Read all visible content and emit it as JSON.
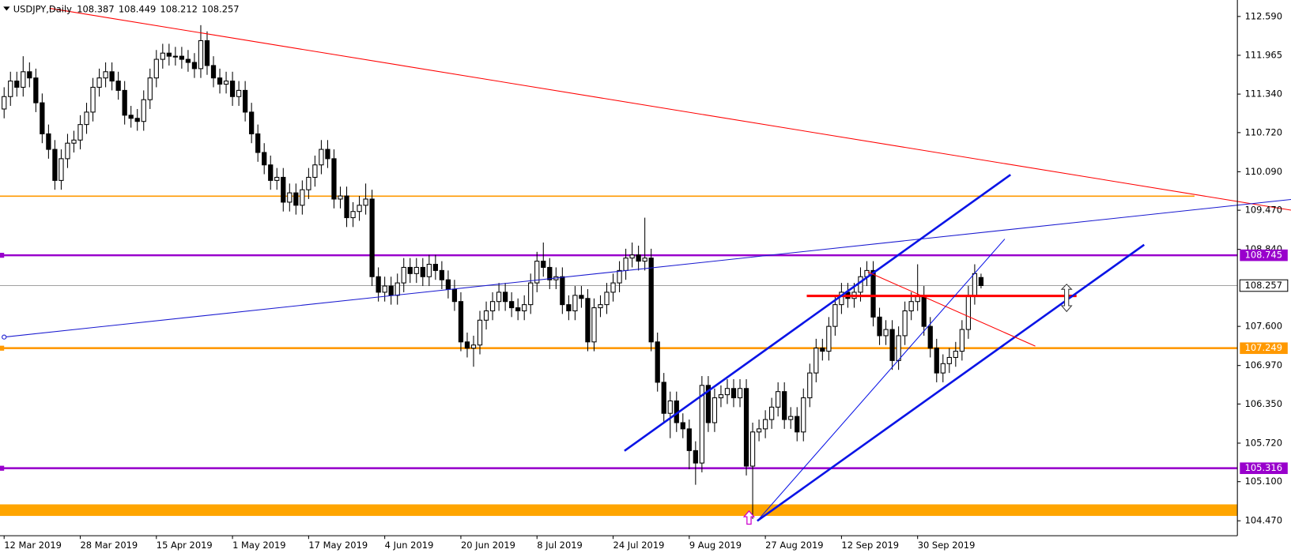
{
  "chart_data": {
    "type": "candlestick",
    "symbol": "USDJPY,Daily",
    "categories": [
      "12 Mar 2019",
      null,
      null,
      null,
      null,
      null,
      null,
      null,
      null,
      null,
      null,
      null,
      "28 Mar 2019",
      null,
      null,
      null,
      null,
      null,
      null,
      null,
      null,
      null,
      null,
      null,
      "15 Apr 2019",
      null,
      null,
      null,
      null,
      null,
      null,
      null,
      null,
      null,
      null,
      null,
      "1 May 2019",
      null,
      null,
      null,
      null,
      null,
      null,
      null,
      null,
      null,
      null,
      null,
      "17 May 2019",
      null,
      null,
      null,
      null,
      null,
      null,
      null,
      null,
      null,
      null,
      null,
      "4 Jun 2019",
      null,
      null,
      null,
      null,
      null,
      null,
      null,
      null,
      null,
      null,
      null,
      "20 Jun 2019",
      null,
      null,
      null,
      null,
      null,
      null,
      null,
      null,
      null,
      null,
      null,
      "8 Jul 2019",
      null,
      null,
      null,
      null,
      null,
      null,
      null,
      null,
      null,
      null,
      null,
      "24 Jul 2019",
      null,
      null,
      null,
      null,
      null,
      null,
      null,
      null,
      null,
      null,
      null,
      "9 Aug 2019",
      null,
      null,
      null,
      null,
      null,
      null,
      null,
      null,
      null,
      null,
      null,
      "27 Aug 2019",
      null,
      null,
      null,
      null,
      null,
      null,
      null,
      null,
      null,
      null,
      null,
      "12 Sep 2019",
      null,
      null,
      null,
      null,
      null,
      null,
      null,
      null,
      null,
      null,
      null,
      "30 Sep 2019",
      null,
      null,
      null,
      null,
      null,
      null,
      null,
      null,
      null,
      null
    ],
    "open": [
      111.1,
      111.3,
      111.55,
      111.45,
      111.7,
      111.6,
      111.2,
      110.7,
      110.45,
      109.95,
      110.3,
      110.55,
      110.6,
      110.85,
      111.05,
      111.45,
      111.6,
      111.7,
      111.55,
      111.4,
      111.0,
      110.95,
      110.9,
      111.25,
      111.6,
      111.9,
      112.0,
      111.95,
      111.95,
      111.9,
      111.85,
      111.75,
      112.2,
      111.8,
      111.6,
      111.5,
      111.55,
      111.3,
      111.4,
      111.05,
      110.7,
      110.4,
      110.2,
      109.95,
      110.0,
      109.6,
      109.75,
      109.55,
      109.8,
      110.0,
      110.2,
      110.45,
      110.3,
      109.65,
      109.7,
      109.35,
      109.45,
      109.55,
      109.65,
      108.4,
      108.15,
      108.25,
      108.1,
      108.3,
      108.55,
      108.45,
      108.55,
      108.4,
      108.6,
      108.5,
      108.35,
      108.2,
      108.0,
      107.35,
      107.25,
      107.3,
      107.7,
      107.85,
      108.0,
      108.15,
      108.0,
      107.9,
      107.85,
      107.95,
      108.3,
      108.65,
      108.55,
      108.35,
      108.4,
      107.95,
      107.85,
      108.1,
      108.05,
      107.35,
      107.9,
      107.95,
      108.15,
      108.3,
      108.5,
      108.7,
      108.75,
      108.65,
      108.7,
      107.35,
      106.7,
      106.2,
      106.4,
      106.05,
      105.95,
      105.6,
      105.4,
      106.65,
      106.05,
      106.45,
      106.5,
      106.6,
      106.45,
      106.6,
      105.35,
      105.9,
      105.95,
      106.1,
      106.3,
      106.55,
      106.1,
      106.15,
      105.9,
      106.45,
      106.85,
      107.25,
      107.2,
      107.6,
      107.95,
      108.15,
      108.05,
      108.15,
      108.4,
      108.5,
      107.75,
      107.45,
      107.55,
      107.05,
      107.45,
      107.85,
      108.0,
      108.1,
      107.6,
      107.25,
      106.85,
      107.0,
      107.1,
      107.2,
      107.55,
      108.1,
      108.387
    ],
    "high": [
      111.45,
      111.7,
      111.7,
      111.95,
      111.85,
      111.75,
      111.35,
      110.85,
      110.6,
      110.45,
      110.7,
      110.75,
      111.0,
      111.2,
      111.6,
      111.75,
      111.85,
      111.85,
      111.7,
      111.55,
      111.15,
      111.1,
      111.4,
      111.75,
      112.05,
      112.15,
      112.15,
      112.1,
      112.1,
      112.05,
      112.0,
      112.45,
      112.35,
      111.95,
      111.75,
      111.7,
      111.7,
      111.55,
      111.55,
      111.2,
      110.85,
      110.55,
      110.35,
      110.15,
      110.15,
      109.9,
      109.9,
      109.95,
      110.15,
      110.35,
      110.6,
      110.6,
      110.45,
      109.85,
      109.85,
      109.6,
      109.7,
      109.9,
      109.8,
      108.55,
      108.4,
      108.4,
      108.45,
      108.7,
      108.7,
      108.7,
      108.7,
      108.75,
      108.75,
      108.65,
      108.5,
      108.35,
      108.15,
      107.5,
      107.45,
      107.85,
      108.0,
      108.15,
      108.3,
      108.3,
      108.15,
      108.05,
      108.1,
      108.45,
      108.8,
      108.95,
      108.7,
      108.55,
      108.55,
      108.1,
      108.25,
      108.25,
      108.2,
      108.05,
      108.1,
      108.3,
      108.45,
      108.65,
      108.85,
      108.95,
      108.9,
      109.35,
      108.85,
      107.5,
      106.85,
      106.55,
      106.55,
      106.2,
      106.1,
      105.75,
      106.8,
      106.8,
      106.6,
      106.65,
      106.75,
      106.75,
      106.75,
      106.75,
      106.05,
      106.1,
      106.25,
      106.45,
      106.7,
      106.7,
      106.3,
      106.3,
      106.6,
      107.0,
      107.4,
      107.4,
      107.75,
      108.1,
      108.3,
      108.3,
      108.3,
      108.55,
      108.65,
      108.65,
      107.9,
      107.7,
      107.7,
      107.6,
      108.0,
      108.15,
      108.6,
      108.25,
      107.75,
      107.4,
      107.15,
      107.25,
      107.35,
      107.7,
      108.25,
      108.6,
      108.449
    ],
    "low": [
      110.95,
      111.15,
      111.3,
      111.3,
      111.45,
      111.05,
      110.55,
      110.3,
      109.8,
      109.8,
      110.15,
      110.4,
      110.45,
      110.7,
      110.9,
      111.3,
      111.45,
      111.4,
      111.25,
      110.85,
      110.8,
      110.75,
      110.75,
      111.1,
      111.45,
      111.75,
      111.8,
      111.8,
      111.75,
      111.7,
      111.6,
      111.6,
      111.65,
      111.45,
      111.35,
      111.35,
      111.15,
      111.15,
      110.9,
      110.55,
      110.25,
      110.05,
      109.8,
      109.8,
      109.45,
      109.45,
      109.4,
      109.4,
      109.65,
      109.85,
      110.05,
      110.15,
      109.5,
      109.5,
      109.2,
      109.2,
      109.3,
      109.4,
      108.25,
      108.0,
      108.0,
      107.95,
      107.95,
      108.15,
      108.3,
      108.3,
      108.25,
      108.25,
      108.35,
      108.2,
      108.05,
      107.85,
      107.2,
      107.1,
      106.95,
      107.15,
      107.55,
      107.7,
      107.85,
      107.85,
      107.75,
      107.7,
      107.7,
      107.8,
      108.15,
      108.4,
      108.2,
      108.2,
      107.8,
      107.7,
      107.7,
      107.9,
      107.2,
      107.2,
      107.75,
      107.8,
      108.0,
      108.15,
      108.35,
      108.55,
      108.5,
      108.5,
      107.2,
      106.55,
      106.05,
      105.8,
      105.9,
      105.8,
      105.3,
      105.05,
      105.25,
      105.9,
      105.9,
      106.3,
      106.35,
      106.3,
      106.3,
      105.2,
      104.5,
      105.75,
      105.8,
      105.95,
      106.15,
      105.95,
      105.95,
      105.75,
      105.75,
      106.3,
      106.7,
      107.05,
      107.05,
      107.45,
      107.8,
      107.9,
      107.9,
      108.0,
      108.25,
      107.6,
      107.3,
      107.3,
      106.9,
      106.9,
      107.3,
      107.7,
      107.85,
      107.45,
      107.1,
      106.7,
      106.7,
      106.85,
      106.95,
      107.05,
      107.4,
      107.95,
      108.212
    ],
    "close": [
      111.3,
      111.55,
      111.45,
      111.7,
      111.6,
      111.2,
      110.7,
      110.45,
      109.95,
      110.3,
      110.55,
      110.6,
      110.85,
      111.05,
      111.45,
      111.6,
      111.7,
      111.55,
      111.4,
      111.0,
      110.95,
      110.9,
      111.25,
      111.6,
      111.9,
      112.0,
      111.95,
      111.95,
      111.9,
      111.85,
      111.75,
      112.2,
      111.8,
      111.6,
      111.5,
      111.55,
      111.3,
      111.4,
      111.05,
      110.7,
      110.4,
      110.2,
      109.95,
      110.0,
      109.6,
      109.75,
      109.55,
      109.8,
      110.0,
      110.2,
      110.45,
      110.3,
      109.65,
      109.7,
      109.35,
      109.45,
      109.55,
      109.65,
      108.4,
      108.15,
      108.25,
      108.1,
      108.3,
      108.55,
      108.45,
      108.55,
      108.4,
      108.6,
      108.5,
      108.35,
      108.2,
      108.0,
      107.35,
      107.25,
      107.3,
      107.7,
      107.85,
      108.0,
      108.15,
      108.0,
      107.9,
      107.85,
      107.95,
      108.3,
      108.65,
      108.55,
      108.35,
      108.4,
      107.95,
      107.85,
      108.1,
      108.05,
      107.35,
      107.9,
      107.95,
      108.15,
      108.3,
      108.5,
      108.7,
      108.75,
      108.65,
      108.7,
      107.35,
      106.7,
      106.2,
      106.4,
      106.05,
      105.95,
      105.6,
      105.4,
      106.65,
      106.05,
      106.45,
      106.5,
      106.6,
      106.45,
      106.6,
      105.35,
      105.9,
      105.95,
      106.1,
      106.3,
      106.55,
      106.1,
      106.15,
      105.9,
      106.45,
      106.85,
      107.25,
      107.2,
      107.6,
      107.95,
      108.15,
      108.05,
      108.15,
      108.4,
      108.5,
      107.75,
      107.45,
      107.55,
      107.05,
      107.45,
      107.85,
      108.0,
      108.1,
      107.6,
      107.25,
      106.85,
      107.0,
      107.1,
      107.2,
      107.55,
      108.1,
      108.45,
      108.257
    ],
    "ylim": [
      104.23,
      112.855
    ],
    "yticks": [
      {
        "value": 112.59,
        "label": "112.590"
      },
      111.965,
      {
        "value": 111.34,
        "label": "111.340"
      },
      {
        "value": 110.72,
        "label": "110.720"
      },
      {
        "value": 110.09,
        "label": "110.090"
      },
      {
        "value": 109.47,
        "label": "109.470"
      },
      {
        "value": 108.84,
        "label": "108.840"
      },
      {
        "value": 107.6,
        "label": "107.600"
      },
      {
        "value": 106.97,
        "label": "106.970"
      },
      {
        "value": 106.35,
        "label": "106.350"
      },
      {
        "value": 105.72,
        "label": "105.720"
      },
      {
        "value": 105.1,
        "label": "105.100"
      },
      {
        "value": 104.47,
        "label": "104.470"
      }
    ],
    "levels": [
      {
        "value": 108.745,
        "color": "#9900cc"
      },
      {
        "value": 107.249,
        "color": "#ff9900"
      },
      {
        "value": 105.316,
        "color": "#9900cc"
      }
    ],
    "bull_color": "#ffffff",
    "bear_color": "#000000"
  }
}
